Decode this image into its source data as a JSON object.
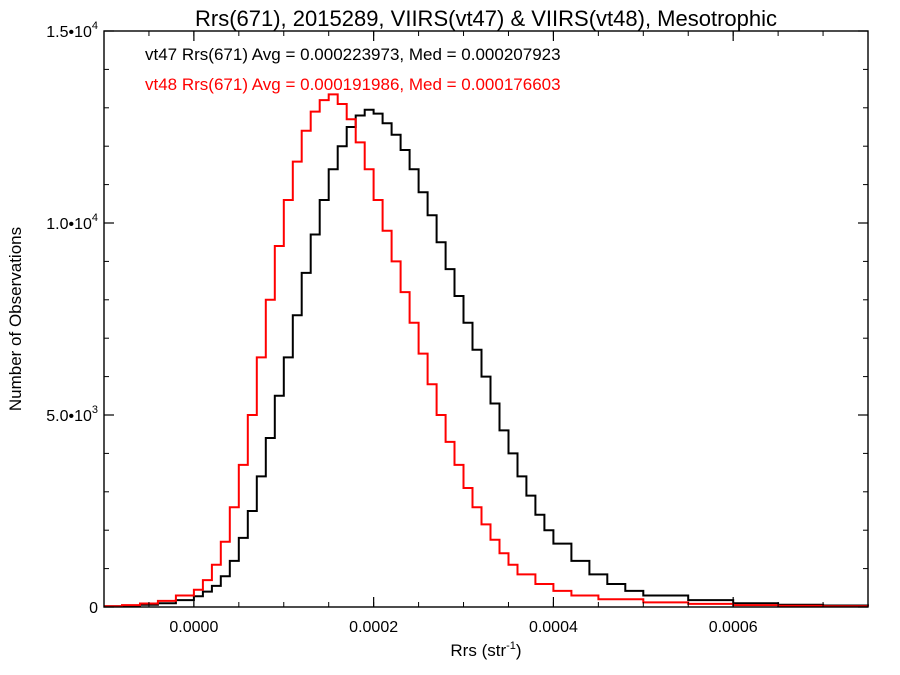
{
  "chart_data": {
    "type": "line",
    "title": "Rrs(671), 2015289, VIIRS(vt47) & VIIRS(vt48), Mesotrophic",
    "xlabel": "Rrs (str",
    "xlabel_sup": "-1",
    "xlabel_close": ")",
    "ylabel": "Number of Observations",
    "xlim": [
      -0.0001,
      0.00075
    ],
    "ylim": [
      0,
      15000
    ],
    "x_ticks": [
      {
        "value": 0.0,
        "label": "0.0000"
      },
      {
        "value": 0.0002,
        "label": "0.0002"
      },
      {
        "value": 0.0004,
        "label": "0.0004"
      },
      {
        "value": 0.0006,
        "label": "0.0006"
      }
    ],
    "y_ticks": [
      {
        "value": 0,
        "label": "0",
        "sup": ""
      },
      {
        "value": 5000,
        "label": "5.0•10",
        "sup": "3"
      },
      {
        "value": 10000,
        "label": "1.0•10",
        "sup": "4"
      },
      {
        "value": 15000,
        "label": "1.5•10",
        "sup": "4"
      }
    ],
    "grid": false,
    "legend_placement": "top-left",
    "series": [
      {
        "name": "vt47",
        "color": "#000000",
        "legend": "vt47 Rrs(671) Avg = 0.000223973, Med = 0.000207923",
        "points": [
          [
            -0.0001,
            20
          ],
          [
            -8e-05,
            30
          ],
          [
            -6e-05,
            60
          ],
          [
            -4e-05,
            100
          ],
          [
            -2e-05,
            180
          ],
          [
            0.0,
            280
          ],
          [
            1e-05,
            400
          ],
          [
            2e-05,
            550
          ],
          [
            3e-05,
            800
          ],
          [
            4e-05,
            1200
          ],
          [
            5e-05,
            1800
          ],
          [
            6e-05,
            2500
          ],
          [
            7e-05,
            3400
          ],
          [
            8e-05,
            4400
          ],
          [
            9e-05,
            5500
          ],
          [
            0.0001,
            6500
          ],
          [
            0.00011,
            7600
          ],
          [
            0.00012,
            8700
          ],
          [
            0.00013,
            9700
          ],
          [
            0.00014,
            10600
          ],
          [
            0.00015,
            11400
          ],
          [
            0.00016,
            12000
          ],
          [
            0.00017,
            12500
          ],
          [
            0.00018,
            12800
          ],
          [
            0.00019,
            12950
          ],
          [
            0.0002,
            12850
          ],
          [
            0.00021,
            12600
          ],
          [
            0.00022,
            12300
          ],
          [
            0.00023,
            11900
          ],
          [
            0.00024,
            11400
          ],
          [
            0.00025,
            10800
          ],
          [
            0.00026,
            10200
          ],
          [
            0.00027,
            9500
          ],
          [
            0.00028,
            8800
          ],
          [
            0.00029,
            8100
          ],
          [
            0.0003,
            7400
          ],
          [
            0.00031,
            6700
          ],
          [
            0.00032,
            6000
          ],
          [
            0.00033,
            5300
          ],
          [
            0.00034,
            4600
          ],
          [
            0.00035,
            4000
          ],
          [
            0.00036,
            3400
          ],
          [
            0.00037,
            2900
          ],
          [
            0.00038,
            2400
          ],
          [
            0.00039,
            2000
          ],
          [
            0.0004,
            1650
          ],
          [
            0.00042,
            1200
          ],
          [
            0.00044,
            850
          ],
          [
            0.00046,
            600
          ],
          [
            0.00048,
            420
          ],
          [
            0.0005,
            300
          ],
          [
            0.00055,
            180
          ],
          [
            0.0006,
            100
          ],
          [
            0.00065,
            60
          ],
          [
            0.0007,
            40
          ],
          [
            0.00075,
            20
          ]
        ]
      },
      {
        "name": "vt48",
        "color": "#ff0000",
        "legend": "vt48 Rrs(671) Avg = 0.000191986, Med = 0.000176603",
        "points": [
          [
            -0.0001,
            20
          ],
          [
            -8e-05,
            50
          ],
          [
            -6e-05,
            90
          ],
          [
            -4e-05,
            160
          ],
          [
            -2e-05,
            300
          ],
          [
            0.0,
            450
          ],
          [
            1e-05,
            700
          ],
          [
            2e-05,
            1100
          ],
          [
            3e-05,
            1700
          ],
          [
            4e-05,
            2600
          ],
          [
            5e-05,
            3700
          ],
          [
            6e-05,
            5000
          ],
          [
            7e-05,
            6500
          ],
          [
            8e-05,
            8000
          ],
          [
            9e-05,
            9400
          ],
          [
            0.0001,
            10600
          ],
          [
            0.00011,
            11600
          ],
          [
            0.00012,
            12400
          ],
          [
            0.00013,
            12900
          ],
          [
            0.00014,
            13200
          ],
          [
            0.00015,
            13350
          ],
          [
            0.00016,
            13100
          ],
          [
            0.00017,
            12700
          ],
          [
            0.00018,
            12100
          ],
          [
            0.00019,
            11400
          ],
          [
            0.0002,
            10600
          ],
          [
            0.00021,
            9800
          ],
          [
            0.00022,
            9000
          ],
          [
            0.00023,
            8200
          ],
          [
            0.00024,
            7400
          ],
          [
            0.00025,
            6600
          ],
          [
            0.00026,
            5800
          ],
          [
            0.00027,
            5000
          ],
          [
            0.00028,
            4300
          ],
          [
            0.00029,
            3700
          ],
          [
            0.0003,
            3100
          ],
          [
            0.00031,
            2600
          ],
          [
            0.00032,
            2150
          ],
          [
            0.00033,
            1750
          ],
          [
            0.00034,
            1400
          ],
          [
            0.00035,
            1100
          ],
          [
            0.00036,
            850
          ],
          [
            0.00038,
            600
          ],
          [
            0.0004,
            420
          ],
          [
            0.00042,
            300
          ],
          [
            0.00045,
            200
          ],
          [
            0.0005,
            120
          ],
          [
            0.00055,
            80
          ],
          [
            0.0006,
            50
          ],
          [
            0.00065,
            30
          ],
          [
            0.0007,
            20
          ],
          [
            0.00075,
            10
          ]
        ]
      }
    ]
  }
}
